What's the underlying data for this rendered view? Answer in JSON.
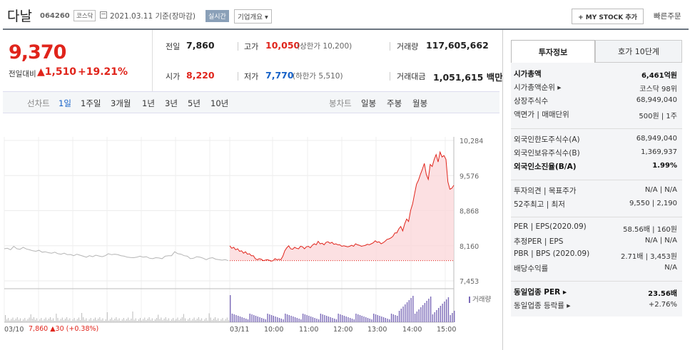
{
  "header": {
    "name": "다날",
    "code": "064260",
    "market": "코스닥",
    "date": "2021.03.11  기준(장마감)",
    "realtime": "실시간",
    "overview": "기업개요",
    "mystock": "+ MY STOCK 추가",
    "quick_order": "빠른주문"
  },
  "price": {
    "current": "9,370",
    "change_label": "전일대비",
    "change_value": "▲1,510",
    "change_pct": "+19.21%"
  },
  "quote": {
    "prev_label": "전일",
    "prev": "7,860",
    "high_label": "고가",
    "high": "10,050",
    "upper_limit": "(상한가 10,200)",
    "volume_label": "거래량",
    "volume": "117,605,662",
    "open_label": "시가",
    "open": "8,220",
    "low_label": "저가",
    "low": "7,770",
    "lower_limit": "(하한가 5,510)",
    "amount_label": "거래대금",
    "amount": "1,051,615 백만"
  },
  "periods": {
    "line_label": "선차트",
    "items": [
      "1일",
      "1주일",
      "3개월",
      "1년",
      "3년",
      "5년",
      "10년"
    ],
    "candle_label": "봉차트",
    "candles": [
      "일봉",
      "주봉",
      "월봉"
    ]
  },
  "chart_data": {
    "type": "line",
    "yticks": [
      "10,284",
      "9,576",
      "8,868",
      "8,160",
      "7,453"
    ],
    "xticks": [
      "03/10",
      "03/11",
      "10:00",
      "11:00",
      "12:00",
      "13:00",
      "14:00",
      "15:00"
    ],
    "volume_label": "거래량",
    "prev_day_summary": {
      "close": "7,860",
      "change": "▲30",
      "pct": "(+0.38%)"
    },
    "prev_day_series": [
      8100,
      8110,
      8080,
      8150,
      8100,
      8090,
      8130,
      8095,
      8080,
      8060,
      8050,
      8070,
      8030,
      8040,
      8020,
      8010,
      8030,
      8000,
      7990,
      8010,
      7980,
      7985,
      7960,
      7990,
      7970,
      7950,
      7930,
      7960,
      7940,
      7970,
      7955,
      7940,
      7960,
      8000,
      7980,
      7990,
      7980,
      7960,
      7950,
      7930,
      7925,
      7920,
      7930,
      7950,
      7930,
      7940,
      7910,
      7900,
      7920,
      7915,
      7900,
      7950,
      7960,
      7960,
      8040,
      8000,
      7990,
      7960,
      7950,
      7900,
      7910,
      7940,
      7930,
      7910,
      7880,
      7910,
      7920,
      7890,
      7880,
      7870,
      7880,
      7860
    ],
    "today_series": [
      8160,
      8110,
      8130,
      8080,
      8100,
      8050,
      8060,
      8010,
      8040,
      7990,
      8000,
      7960,
      7960,
      7900,
      7880,
      7900,
      7890,
      7860,
      7870,
      7880,
      7870,
      7850,
      7860,
      7900,
      7880,
      7890,
      7880,
      7950,
      8060,
      8120,
      8160,
      8100,
      8090,
      8130,
      8110,
      8100,
      8150,
      8140,
      8100,
      8140,
      8150,
      8120,
      8170,
      8200,
      8180,
      8250,
      8200,
      8210,
      8180,
      8230,
      8240,
      8210,
      8230,
      8190,
      8200,
      8180,
      8180,
      8150,
      8160,
      8150,
      8140,
      8150,
      8170,
      8150,
      8200,
      8180,
      8170,
      8150,
      8160,
      8170,
      8190,
      8180,
      8200,
      8220,
      8260,
      8230,
      8240,
      8200,
      8220,
      8250,
      8290,
      8300,
      8320,
      8350,
      8420,
      8420,
      8500,
      8550,
      8460,
      8600,
      8700,
      8650,
      8870,
      9000,
      9200,
      9400,
      9480,
      9600,
      9700,
      9820,
      9600,
      9500,
      9800,
      9760,
      9900,
      10000,
      9850,
      10050,
      9950,
      9980,
      9900,
      9450,
      9300,
      9320,
      9380
    ],
    "prev_close": 7860,
    "ylim": [
      7453,
      10284
    ]
  },
  "panel": {
    "tab_active": "투자정보",
    "tab_other": "호가 10단계",
    "rows1": [
      {
        "label": "시가총액",
        "value": "6,461억원",
        "bold": true
      },
      {
        "label": "시가총액순위 ▸",
        "value": "코스닥  98위"
      },
      {
        "label": "상장주식수",
        "value": "68,949,040"
      },
      {
        "label": "액면가  |  매매단위",
        "value": "500원  |  1주"
      }
    ],
    "rows2": [
      {
        "label": "외국인한도주식수(A)",
        "value": "68,949,040"
      },
      {
        "label": "외국인보유주식수(B)",
        "value": "1,369,937"
      },
      {
        "label": "외국인소진율(B/A)",
        "value": "1.99%",
        "bold": true
      }
    ],
    "rows3": [
      {
        "label": "투자의견  |  목표주가",
        "value": "N/A  |  N/A"
      },
      {
        "label": "52주최고  |  최저",
        "value": "9,550  |  2,190"
      }
    ],
    "rows4": [
      {
        "label": "PER  |  EPS(2020.09)",
        "value": "58.56배  |  160원"
      },
      {
        "label": "추정PER  |  EPS",
        "value": "N/A  |  N/A"
      },
      {
        "label": "PBR  |  BPS (2020.09)",
        "value": "2.71배  |  3,453원"
      },
      {
        "label": "배당수익률",
        "value": "N/A"
      }
    ],
    "rows5": [
      {
        "label": "동일업종 PER ▸",
        "value": "23.56배",
        "bold": true
      },
      {
        "label": "동일업종 등락률 ▸",
        "value": "+2.76%",
        "red": true
      }
    ]
  }
}
